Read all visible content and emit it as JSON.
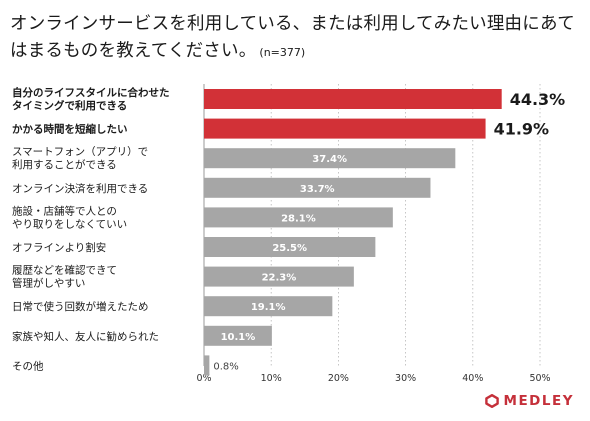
{
  "title": {
    "line1": "オンラインサービスを利用している、または利用してみたい理由にあて",
    "line2": "はまるものを教えてください。",
    "note": "(n=377)"
  },
  "brand": {
    "name": "MEDLEY",
    "icon": "medley-logo-icon",
    "color": "#c5303a"
  },
  "colors": {
    "highlight": "#d23137",
    "bar": "#a6a6a6"
  },
  "chart_data": {
    "type": "bar",
    "orientation": "horizontal",
    "categories": [
      [
        "自分のライフスタイルに合わせた",
        "タイミングで利用できる"
      ],
      [
        "かかる時間を短縮したい"
      ],
      [
        "スマートフォン（アプリ）で",
        "利用することができる"
      ],
      [
        "オンライン決済を利用できる"
      ],
      [
        "施設・店舗等で人との",
        "やり取りをしなくていい"
      ],
      [
        "オフラインより割安"
      ],
      [
        "履歴などを確認できて",
        "管理がしやすい"
      ],
      [
        "日常で使う回数が増えたため"
      ],
      [
        "家族や知人、友人に勧められた"
      ],
      [
        "その他"
      ]
    ],
    "values": [
      44.3,
      41.9,
      37.4,
      33.7,
      28.1,
      25.5,
      22.3,
      19.1,
      10.1,
      0.8
    ],
    "value_labels": [
      "44.3%",
      "41.9%",
      "37.4%",
      "33.7%",
      "28.1%",
      "25.5%",
      "22.3%",
      "19.1%",
      "10.1%",
      "0.8%"
    ],
    "highlighted": [
      true,
      true,
      false,
      false,
      false,
      false,
      false,
      false,
      false,
      false
    ],
    "xlim": [
      0,
      50
    ],
    "xticks": [
      0,
      10,
      20,
      30,
      40,
      50
    ],
    "xtick_labels": [
      "0%",
      "10%",
      "20%",
      "30%",
      "40%",
      "50%"
    ],
    "grid": "vertical-dotted",
    "title": "オンラインサービスを利用している、または利用してみたい理由にあてはまるものを教えてください。",
    "xlabel": "",
    "ylabel": ""
  }
}
